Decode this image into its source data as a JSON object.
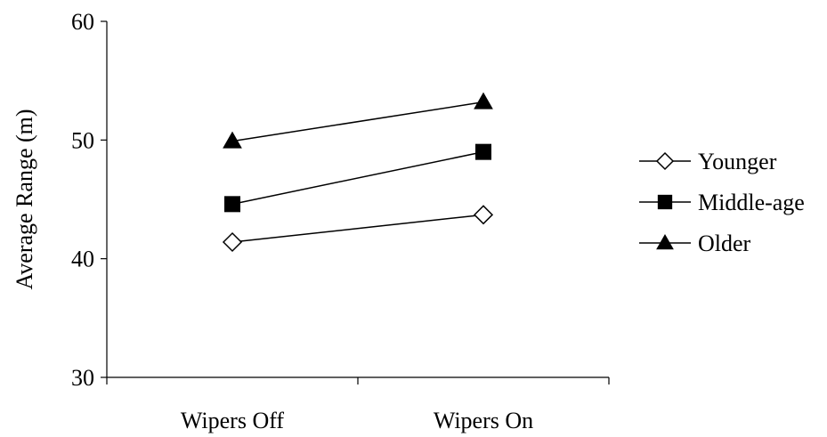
{
  "chart_data": {
    "type": "line",
    "title": "",
    "xlabel": "",
    "ylabel": "Average Range (m)",
    "categories": [
      "Wipers Off",
      "Wipers On"
    ],
    "ylim": [
      30,
      60
    ],
    "yticks": [
      30,
      40,
      50,
      60
    ],
    "grid": false,
    "legend_position": "right",
    "series": [
      {
        "name": "Younger",
        "values": [
          41.4,
          43.7
        ],
        "marker": "diamond-open",
        "color": "#000000"
      },
      {
        "name": "Middle-age",
        "values": [
          44.6,
          49.0
        ],
        "marker": "square-filled",
        "color": "#000000"
      },
      {
        "name": "Older",
        "values": [
          49.9,
          53.2
        ],
        "marker": "triangle-filled",
        "color": "#000000"
      }
    ]
  }
}
